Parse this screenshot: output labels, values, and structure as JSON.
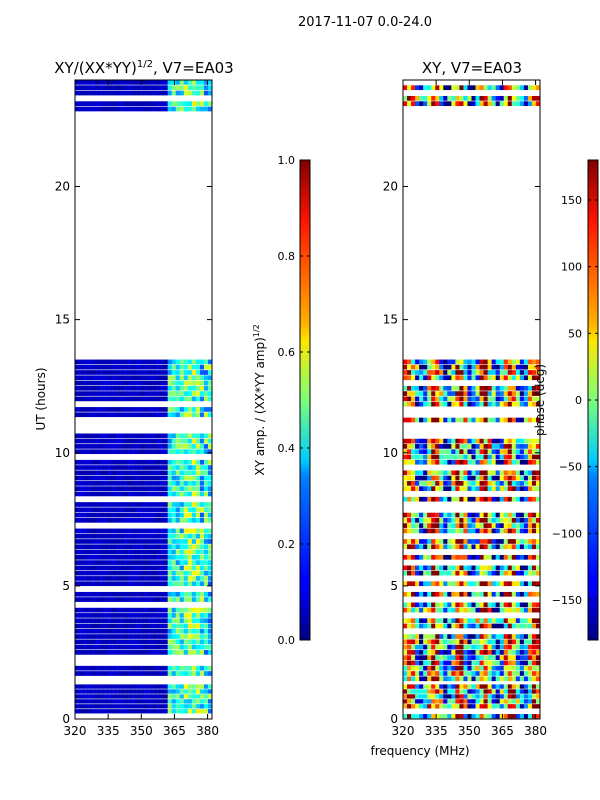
{
  "figure_title": "2017-11-07 0.0-24.0",
  "chart_data": [
    {
      "type": "heatmap",
      "title_main": "XY/(XX*YY)",
      "title_sup": "1/2",
      "title_rest": ", V7=EA03",
      "xlabel": "",
      "ylabel": "UT (hours)",
      "xlim": [
        320,
        382
      ],
      "ylim": [
        0,
        24
      ],
      "x_ticks": [
        320,
        335,
        350,
        365,
        380
      ],
      "y_ticks": [
        0,
        5,
        10,
        15,
        20
      ],
      "data_blocks_hours": [
        [
          0.0,
          1.3
        ],
        [
          1.4,
          13.5
        ],
        [
          22.8,
          24.0
        ]
      ],
      "data_summary": "Mostly low normalized amplitude (~0.05) across 320-362 MHz; higher values (~0.3-0.5) in 362-382 MHz band",
      "colorbar": {
        "label_main": "XY amp. / (XX*YY amp)",
        "label_sup": "1/2",
        "ticks": [
          "0.0",
          "0.2",
          "0.4",
          "0.6",
          "0.8",
          "1.0"
        ],
        "range": [
          0.0,
          1.0
        ],
        "colormap": "jet"
      }
    },
    {
      "type": "heatmap",
      "title": "XY, V7=EA03",
      "xlabel": "frequency (MHz)",
      "ylabel": "",
      "xlim": [
        320,
        382
      ],
      "ylim": [
        0,
        24
      ],
      "x_ticks": [
        320,
        335,
        350,
        365,
        380
      ],
      "y_ticks": [
        0,
        5,
        10,
        15,
        20
      ],
      "data_blocks_hours": [
        [
          0.0,
          1.3
        ],
        [
          1.4,
          13.5
        ],
        [
          22.8,
          24.0
        ]
      ],
      "data_summary": "Phase values span full -180 to 180 deg with vertical frequency striping",
      "colorbar": {
        "label": "phase (deg)",
        "ticks": [
          "−150",
          "−100",
          "−50",
          "0",
          "50",
          "100",
          "150"
        ],
        "range": [
          -180,
          180
        ],
        "colormap": "jet"
      }
    }
  ]
}
